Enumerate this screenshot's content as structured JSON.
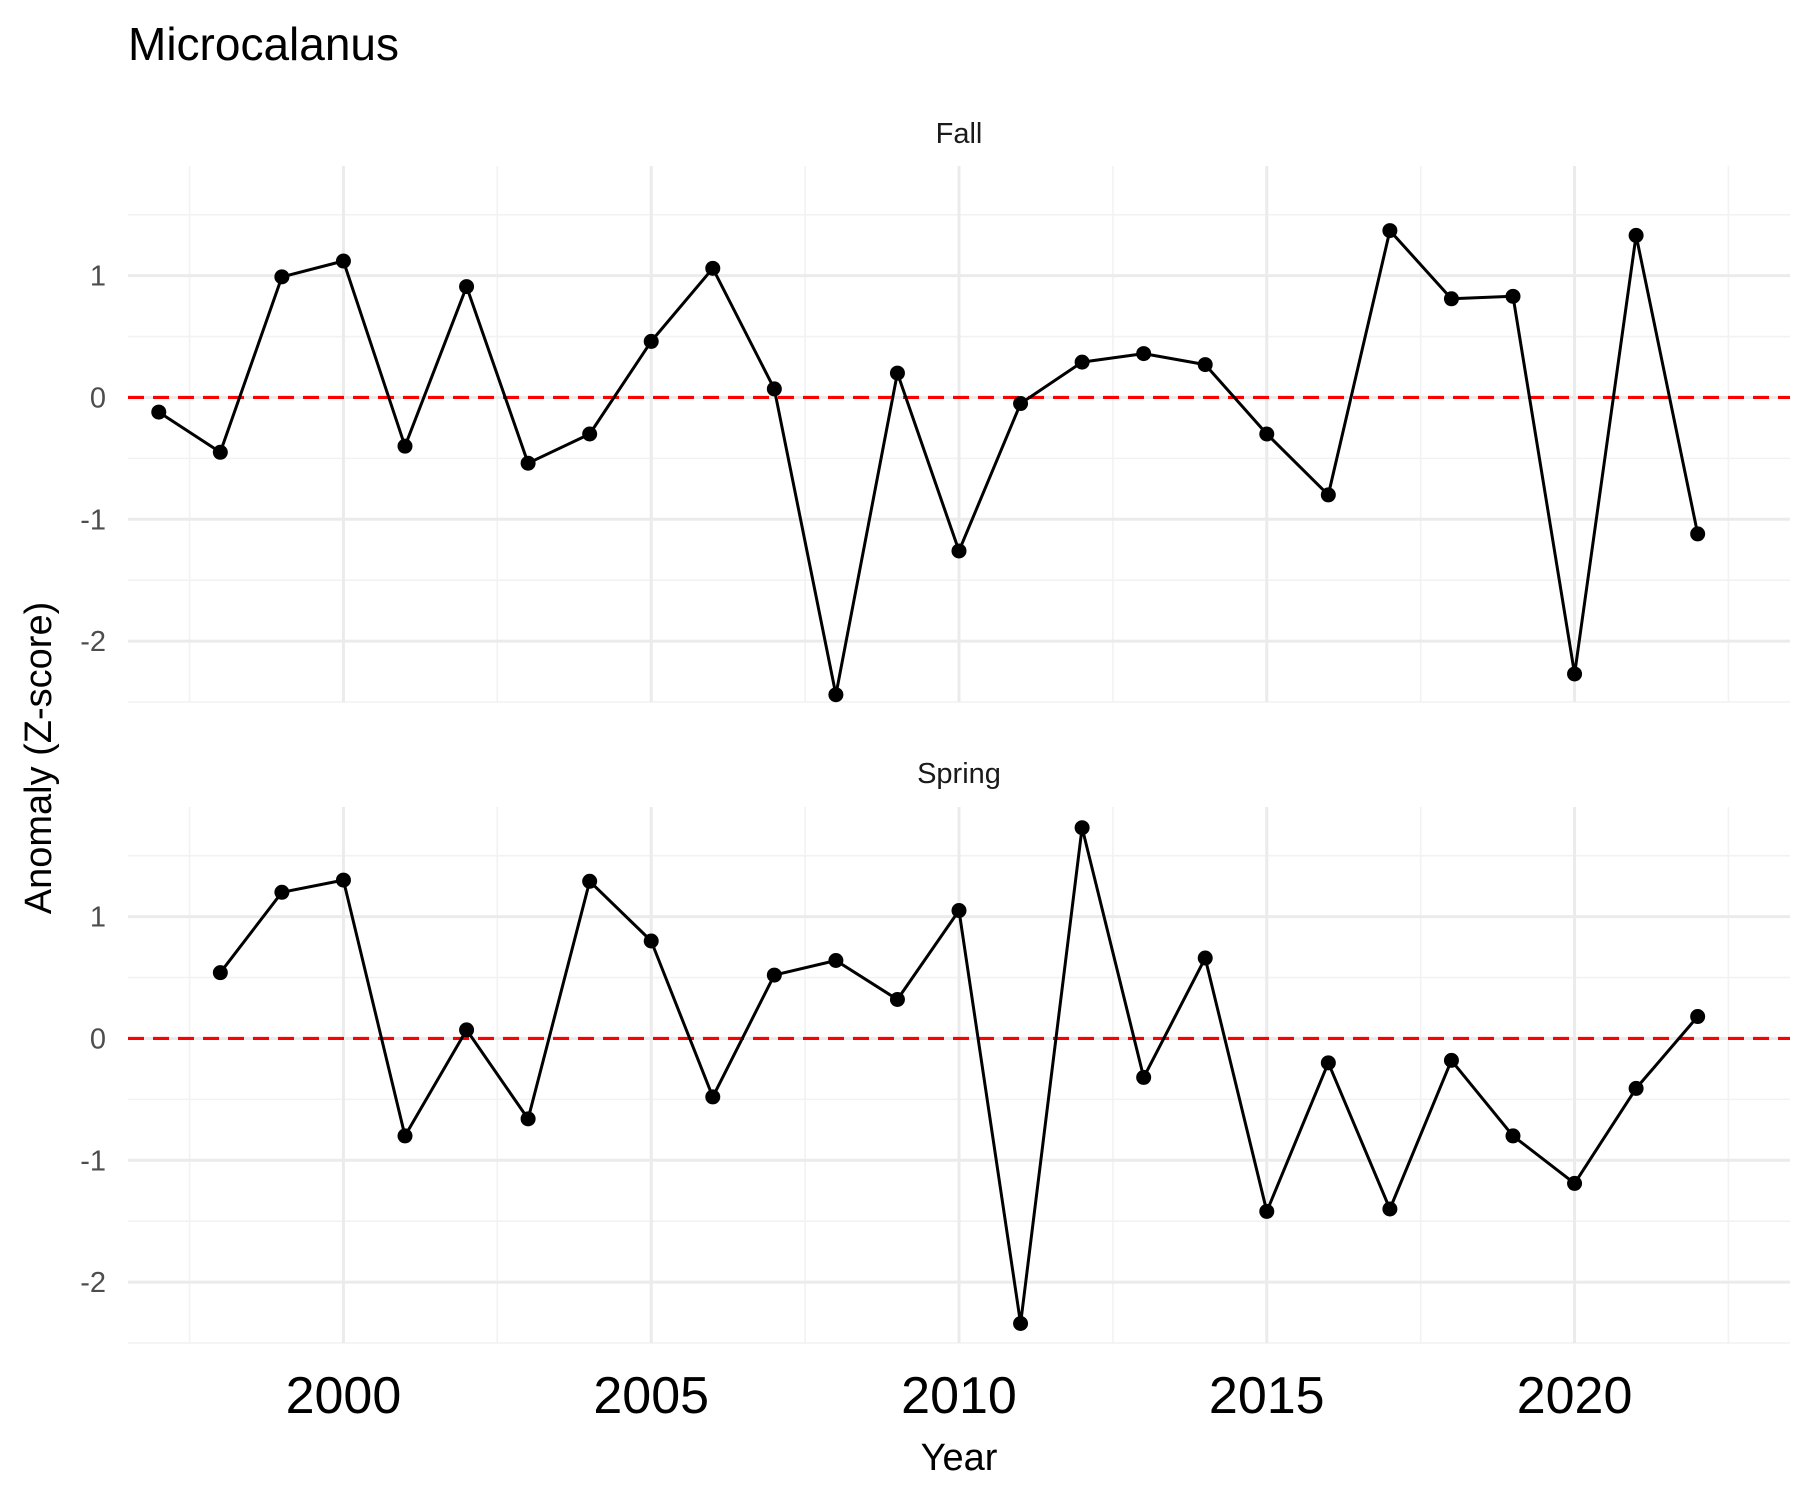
{
  "chart_data": {
    "type": "line",
    "title": "Microcalanus",
    "xlabel": "Year",
    "ylabel": "Anomaly (Z-score)",
    "xlim": [
      1996.5,
      2023.5
    ],
    "ylim": [
      -2.5,
      1.9
    ],
    "x_ticks": [
      "2000",
      "2005",
      "2010",
      "2015",
      "2020"
    ],
    "y_ticks": [
      "-2",
      "-1",
      "0",
      "1"
    ],
    "reference_line": {
      "y": 0,
      "color": "#ff0000",
      "style": "dashed"
    },
    "grid": true,
    "legend": "none",
    "panels": [
      {
        "label": "Fall",
        "x": [
          1997,
          1998,
          1999,
          2000,
          2001,
          2002,
          2003,
          2004,
          2005,
          2006,
          2007,
          2008,
          2009,
          2010,
          2011,
          2012,
          2013,
          2014,
          2015,
          2016,
          2017,
          2018,
          2019,
          2020,
          2021,
          2022
        ],
        "values": [
          -0.12,
          -0.45,
          0.99,
          1.12,
          -0.4,
          0.91,
          -0.54,
          -0.3,
          0.46,
          1.06,
          0.07,
          -2.44,
          0.2,
          -1.26,
          -0.05,
          0.29,
          0.36,
          0.27,
          -0.3,
          -0.8,
          1.37,
          0.81,
          0.83,
          -2.27,
          1.33,
          -1.12
        ]
      },
      {
        "label": "Spring",
        "x": [
          1998,
          1999,
          2000,
          2001,
          2002,
          2003,
          2004,
          2005,
          2006,
          2007,
          2008,
          2009,
          2010,
          2011,
          2012,
          2013,
          2014,
          2015,
          2016,
          2017,
          2018,
          2019,
          2020,
          2021,
          2022
        ],
        "values": [
          0.54,
          1.2,
          1.3,
          -0.8,
          0.07,
          -0.66,
          1.29,
          0.8,
          -0.48,
          0.52,
          0.64,
          0.32,
          1.05,
          -2.34,
          1.73,
          -0.32,
          0.66,
          -1.42,
          -0.2,
          -1.4,
          -0.18,
          -0.8,
          -1.19,
          -0.41,
          0.18
        ]
      }
    ]
  }
}
